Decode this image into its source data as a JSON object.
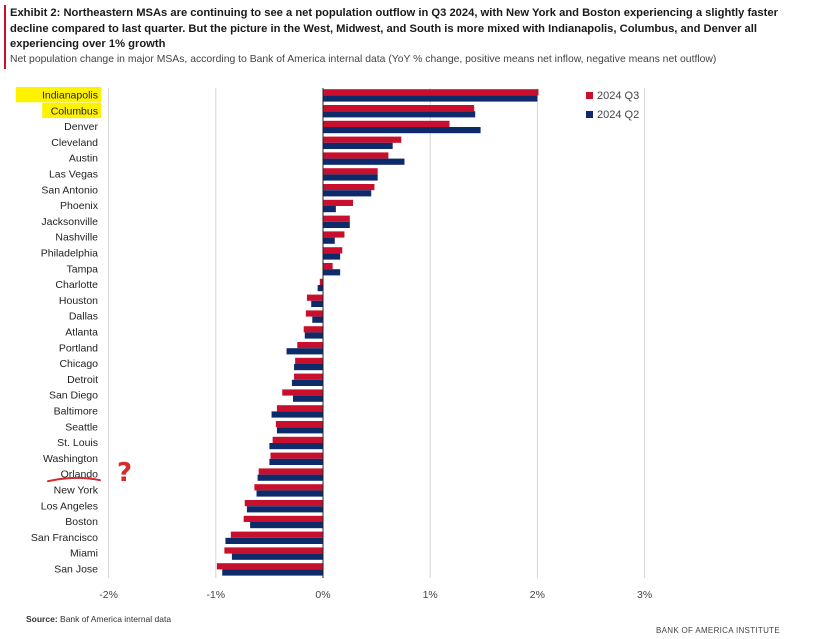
{
  "header": {
    "title": "Exhibit 2: Northeastern MSAs are continuing to see a net population outflow in Q3 2024, with New York and Boston experiencing a slightly faster decline compared to last quarter. But the picture in the West, Midwest, and South is more mixed with Indianapolis, Columbus, and Denver all experiencing over 1% growth",
    "subtitle": "Net population change in major MSAs, according to Bank of America internal data (YoY % change, positive means net inflow, negative means net outflow)"
  },
  "footer": {
    "source_label": "Source:",
    "source_text": "Bank of America internal data",
    "brand": "BANK OF AMERICA INSTITUTE"
  },
  "colors": {
    "q3": "#c8102e",
    "q2": "#0d2a6b",
    "highlight": "#fff200",
    "annotation": "#d42b2b"
  },
  "annotation": {
    "text": "?",
    "target": "Orlando"
  },
  "chart_data": {
    "type": "bar",
    "orientation": "horizontal",
    "categories": [
      "Indianapolis",
      "Columbus",
      "Denver",
      "Cleveland",
      "Austin",
      "Las Vegas",
      "San Antonio",
      "Phoenix",
      "Jacksonville",
      "Nashville",
      "Philadelphia",
      "Tampa",
      "Charlotte",
      "Houston",
      "Dallas",
      "Atlanta",
      "Portland",
      "Chicago",
      "Detroit",
      "San Diego",
      "Baltimore",
      "Seattle",
      "St. Louis",
      "Washington",
      "Orlando",
      "New York",
      "Los Angeles",
      "Boston",
      "San Francisco",
      "Miami",
      "San Jose"
    ],
    "highlighted_categories": [
      "Indianapolis",
      "Columbus"
    ],
    "series": [
      {
        "name": "2024 Q3",
        "values": [
          2.01,
          1.41,
          1.18,
          0.73,
          0.61,
          0.51,
          0.48,
          0.28,
          0.25,
          0.2,
          0.18,
          0.09,
          -0.03,
          -0.15,
          -0.16,
          -0.18,
          -0.24,
          -0.26,
          -0.27,
          -0.38,
          -0.43,
          -0.44,
          -0.47,
          -0.49,
          -0.6,
          -0.64,
          -0.73,
          -0.74,
          -0.86,
          -0.92,
          -0.99
        ]
      },
      {
        "name": "2024 Q2",
        "values": [
          2.0,
          1.42,
          1.47,
          0.65,
          0.76,
          0.51,
          0.45,
          0.12,
          0.25,
          0.11,
          0.16,
          0.16,
          -0.05,
          -0.11,
          -0.1,
          -0.17,
          -0.34,
          -0.27,
          -0.29,
          -0.28,
          -0.48,
          -0.43,
          -0.5,
          -0.5,
          -0.61,
          -0.62,
          -0.71,
          -0.68,
          -0.91,
          -0.85,
          -0.94
        ]
      }
    ],
    "x_ticks": [
      "-2%",
      "-1%",
      "0%",
      "1%",
      "2%",
      "3%"
    ],
    "x_tick_values": [
      -2,
      -1,
      0,
      1,
      2,
      3
    ],
    "xlim": [
      -2,
      3
    ],
    "grid": "vertical",
    "legend_position": "top-right"
  }
}
